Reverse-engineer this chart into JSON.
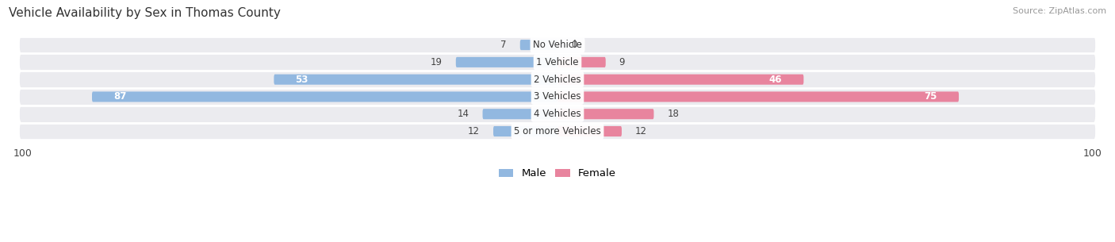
{
  "title": "Vehicle Availability by Sex in Thomas County",
  "source": "Source: ZipAtlas.com",
  "categories": [
    "No Vehicle",
    "1 Vehicle",
    "2 Vehicles",
    "3 Vehicles",
    "4 Vehicles",
    "5 or more Vehicles"
  ],
  "male_values": [
    7,
    19,
    53,
    87,
    14,
    12
  ],
  "female_values": [
    0,
    9,
    46,
    75,
    18,
    12
  ],
  "male_color": "#92b8e0",
  "female_color": "#e8849e",
  "label_color_dark": "#333333",
  "label_color_white": "#ffffff",
  "background_color": "#ffffff",
  "row_bg_color": "#ebebef",
  "x_max": 100,
  "legend_male": "Male",
  "legend_female": "Female",
  "white_label_threshold": 40
}
